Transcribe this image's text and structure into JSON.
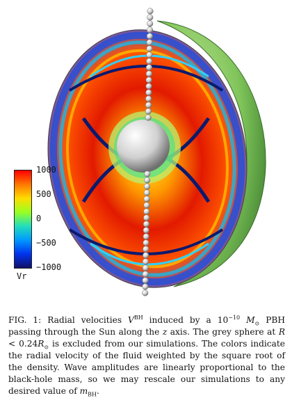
{
  "colorbar": {
    "label": "Vr",
    "ticks": [
      "1000",
      "500",
      "0",
      "−500",
      "−1000"
    ],
    "colors": [
      "#ff0000",
      "#ff7700",
      "#ffdd00",
      "#99ff22",
      "#22ddbb",
      "#0099ff",
      "#0033ee",
      "#111166"
    ]
  },
  "caption": {
    "p1": "FIG. 1: Radial velocities ",
    "v": "V",
    "v_sup": "BH",
    "p2": " induced by a 10",
    "exp": "−10",
    "msun": "M",
    "msun_sub": "⊙",
    "p3": " PBH passing through the Sun along the ",
    "z": "z",
    "p4": " axis. The grey sphere at ",
    "r": "R",
    "p5": " < 0.24",
    "r2": "R",
    "r2_sub": "⊙",
    "p6": " is excluded from our simulations. The colors indicate the radial velocity of the fluid weighted by the square root of the density. Wave amplitudes are linearly proportional to the black-hole mass, so we may rescale our simulations to any desired value of ",
    "m": "m",
    "m_sub": "BH",
    "p7": "."
  }
}
